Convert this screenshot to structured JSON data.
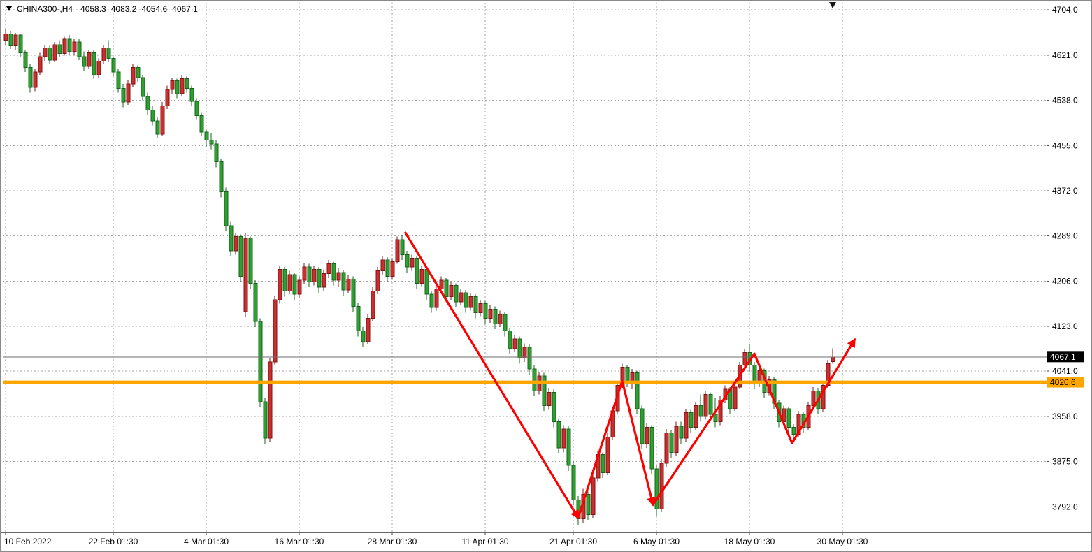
{
  "info_bar": {
    "symbol_period": "CHINA300-,H4",
    "open": "4058.3",
    "high": "4083.2",
    "low": "4054.6",
    "close": "4067.1"
  },
  "colors": {
    "bull": "#cc2e2e",
    "bull_border": "#801414",
    "bear": "#2fa02f",
    "bear_border": "#14641c",
    "grid": "#a6a6a6",
    "orange_line": "#ffa500",
    "current_line": "#6e6e6e",
    "arrow": "#fe0000",
    "axis_text": "#000000",
    "current_label_bg": "#000000",
    "current_label_text": "#ffffff",
    "hline_label_bg": "#ffa500",
    "hline_label_text": "#000000"
  },
  "chart_data": {
    "type": "candlestick",
    "symbol": "CHINA300-",
    "timeframe": "H4",
    "title": "CHINA300-,H4",
    "grid": true,
    "ylim": [
      3745,
      4715
    ],
    "current_price": "4067.1",
    "current_bar": {
      "open": 4058.3,
      "high": 4083.2,
      "low": 4054.6,
      "close": 4067.1
    },
    "horizontal_line": "4020.6",
    "y_axis": {
      "ticks": [
        "4704.0",
        "4621.0",
        "4538.0",
        "4455.0",
        "4372.0",
        "4289.0",
        "4206.0",
        "4123.0",
        "4041.0",
        "3958.0",
        "3875.0",
        "3792.0"
      ]
    },
    "x_axis": {
      "ticks": [
        {
          "index": 0,
          "label": "10 Feb 2022"
        },
        {
          "index": 22,
          "label": "22 Feb 01:30"
        },
        {
          "index": 41,
          "label": "4 Mar 01:30"
        },
        {
          "index": 60,
          "label": "16 Mar 01:30"
        },
        {
          "index": 79,
          "label": "28 Mar 01:30"
        },
        {
          "index": 98,
          "label": "11 Apr 01:30"
        },
        {
          "index": 116,
          "label": "21 Apr 01:30"
        },
        {
          "index": 133,
          "label": "6 May 01:30"
        },
        {
          "index": 152,
          "label": "18 May 01:30"
        },
        {
          "index": 171,
          "label": "30 May 01:30"
        }
      ]
    },
    "trend_arrows": [
      {
        "from": [
          81.7,
          4295
        ],
        "to": [
          117,
          3772
        ],
        "head": true
      },
      {
        "from": [
          117,
          3772
        ],
        "to": [
          126,
          4023
        ],
        "head": false
      },
      {
        "from": [
          126,
          4023
        ],
        "to": [
          132.3,
          3796
        ],
        "head": true
      },
      {
        "from": [
          132.3,
          3796
        ],
        "to": [
          153,
          4073
        ],
        "head": false
      },
      {
        "from": [
          153,
          4073
        ],
        "to": [
          160.7,
          3909
        ],
        "head": false
      },
      {
        "from": [
          160.7,
          3909
        ],
        "to": [
          173.5,
          4099
        ],
        "head": true
      }
    ],
    "candles": [
      [
        4648,
        4668,
        4640,
        4660
      ],
      [
        4660,
        4665,
        4632,
        4638
      ],
      [
        4638,
        4662,
        4630,
        4658
      ],
      [
        4658,
        4660,
        4618,
        4625
      ],
      [
        4625,
        4630,
        4590,
        4598
      ],
      [
        4598,
        4605,
        4552,
        4562
      ],
      [
        4562,
        4595,
        4555,
        4590
      ],
      [
        4590,
        4625,
        4585,
        4618
      ],
      [
        4618,
        4640,
        4610,
        4634
      ],
      [
        4634,
        4638,
        4605,
        4612
      ],
      [
        4612,
        4645,
        4608,
        4640
      ],
      [
        4640,
        4648,
        4618,
        4624
      ],
      [
        4624,
        4655,
        4620,
        4650
      ],
      [
        4650,
        4658,
        4622,
        4628
      ],
      [
        4628,
        4650,
        4620,
        4645
      ],
      [
        4645,
        4650,
        4612,
        4618
      ],
      [
        4618,
        4628,
        4592,
        4600
      ],
      [
        4600,
        4630,
        4595,
        4625
      ],
      [
        4625,
        4630,
        4578,
        4585
      ],
      [
        4585,
        4615,
        4580,
        4610
      ],
      [
        4610,
        4640,
        4605,
        4634
      ],
      [
        4634,
        4648,
        4608,
        4615
      ],
      [
        4615,
        4618,
        4582,
        4590
      ],
      [
        4590,
        4595,
        4552,
        4560
      ],
      [
        4560,
        4568,
        4525,
        4535
      ],
      [
        4535,
        4575,
        4530,
        4568
      ],
      [
        4568,
        4605,
        4562,
        4598
      ],
      [
        4598,
        4602,
        4572,
        4580
      ],
      [
        4580,
        4585,
        4538,
        4545
      ],
      [
        4545,
        4552,
        4512,
        4520
      ],
      [
        4520,
        4528,
        4492,
        4500
      ],
      [
        4500,
        4508,
        4468,
        4476
      ],
      [
        4476,
        4535,
        4472,
        4528
      ],
      [
        4528,
        4565,
        4522,
        4558
      ],
      [
        4558,
        4580,
        4550,
        4574
      ],
      [
        4574,
        4578,
        4542,
        4550
      ],
      [
        4550,
        4585,
        4545,
        4578
      ],
      [
        4578,
        4582,
        4552,
        4560
      ],
      [
        4560,
        4565,
        4528,
        4536
      ],
      [
        4536,
        4542,
        4502,
        4510
      ],
      [
        4510,
        4515,
        4472,
        4480
      ],
      [
        4480,
        4485,
        4452,
        4465
      ],
      [
        4465,
        4478,
        4448,
        4458
      ],
      [
        4458,
        4464,
        4415,
        4425
      ],
      [
        4425,
        4430,
        4360,
        4370
      ],
      [
        4370,
        4378,
        4298,
        4308
      ],
      [
        4308,
        4315,
        4252,
        4262
      ],
      [
        4262,
        4295,
        4255,
        4288
      ],
      [
        4288,
        4292,
        4205,
        4215
      ],
      [
        4150,
        4295,
        4140,
        4285
      ],
      [
        4285,
        4288,
        4192,
        4202
      ],
      [
        4202,
        4208,
        4122,
        4132
      ],
      [
        4132,
        4138,
        3975,
        3985
      ],
      [
        3985,
        3992,
        3908,
        3918
      ],
      [
        3918,
        4065,
        3912,
        4058
      ],
      [
        4058,
        4180,
        4052,
        4172
      ],
      [
        4172,
        4235,
        4165,
        4228
      ],
      [
        4228,
        4232,
        4178,
        4188
      ],
      [
        4188,
        4225,
        4182,
        4218
      ],
      [
        4218,
        4222,
        4172,
        4182
      ],
      [
        4182,
        4215,
        4175,
        4208
      ],
      [
        4208,
        4240,
        4200,
        4232
      ],
      [
        4232,
        4238,
        4195,
        4205
      ],
      [
        4205,
        4235,
        4198,
        4228
      ],
      [
        4228,
        4232,
        4185,
        4195
      ],
      [
        4195,
        4228,
        4188,
        4220
      ],
      [
        4220,
        4245,
        4212,
        4238
      ],
      [
        4238,
        4242,
        4198,
        4208
      ],
      [
        4208,
        4230,
        4195,
        4222
      ],
      [
        4222,
        4226,
        4180,
        4190
      ],
      [
        4190,
        4218,
        4184,
        4210
      ],
      [
        4210,
        4215,
        4150,
        4160
      ],
      [
        4160,
        4166,
        4105,
        4115
      ],
      [
        4115,
        4122,
        4085,
        4095
      ],
      [
        4095,
        4145,
        4090,
        4138
      ],
      [
        4138,
        4195,
        4132,
        4188
      ],
      [
        4188,
        4232,
        4182,
        4225
      ],
      [
        4225,
        4252,
        4218,
        4245
      ],
      [
        4245,
        4250,
        4205,
        4215
      ],
      [
        4215,
        4248,
        4210,
        4242
      ],
      [
        4242,
        4288,
        4238,
        4282
      ],
      [
        4282,
        4290,
        4245,
        4255
      ],
      [
        4255,
        4262,
        4222,
        4232
      ],
      [
        4232,
        4255,
        4225,
        4248
      ],
      [
        4248,
        4252,
        4192,
        4202
      ],
      [
        4202,
        4235,
        4196,
        4228
      ],
      [
        4228,
        4232,
        4172,
        4182
      ],
      [
        4182,
        4188,
        4148,
        4158
      ],
      [
        4158,
        4198,
        4152,
        4192
      ],
      [
        4192,
        4215,
        4186,
        4208
      ],
      [
        4208,
        4212,
        4168,
        4178
      ],
      [
        4178,
        4205,
        4172,
        4198
      ],
      [
        4198,
        4202,
        4158,
        4168
      ],
      [
        4168,
        4192,
        4162,
        4185
      ],
      [
        4185,
        4190,
        4148,
        4158
      ],
      [
        4158,
        4185,
        4152,
        4178
      ],
      [
        4178,
        4182,
        4138,
        4148
      ],
      [
        4148,
        4172,
        4142,
        4165
      ],
      [
        4165,
        4170,
        4128,
        4138
      ],
      [
        4138,
        4162,
        4130,
        4155
      ],
      [
        4155,
        4160,
        4118,
        4128
      ],
      [
        4128,
        4152,
        4122,
        4145
      ],
      [
        4145,
        4150,
        4105,
        4115
      ],
      [
        4115,
        4120,
        4072,
        4082
      ],
      [
        4082,
        4108,
        4076,
        4100
      ],
      [
        4100,
        4105,
        4055,
        4065
      ],
      [
        4065,
        4092,
        4058,
        4085
      ],
      [
        4085,
        4090,
        4035,
        4045
      ],
      [
        4045,
        4052,
        3995,
        4005
      ],
      [
        4005,
        4040,
        3998,
        4032
      ],
      [
        4032,
        4038,
        3968,
        3978
      ],
      [
        3978,
        4010,
        3970,
        4002
      ],
      [
        4002,
        4008,
        3938,
        3948
      ],
      [
        3948,
        3955,
        3890,
        3900
      ],
      [
        3900,
        3942,
        3892,
        3935
      ],
      [
        3935,
        3940,
        3858,
        3868
      ],
      [
        3868,
        3875,
        3795,
        3805
      ],
      [
        3805,
        3812,
        3758,
        3770
      ],
      [
        3770,
        3825,
        3762,
        3815
      ],
      [
        3815,
        3820,
        3768,
        3778
      ],
      [
        3778,
        3852,
        3772,
        3845
      ],
      [
        3845,
        3895,
        3838,
        3888
      ],
      [
        3888,
        3892,
        3845,
        3855
      ],
      [
        3855,
        3928,
        3850,
        3920
      ],
      [
        3920,
        3975,
        3915,
        3968
      ],
      [
        3968,
        4022,
        3962,
        4015
      ],
      [
        4015,
        4055,
        4010,
        4048
      ],
      [
        4048,
        4052,
        4012,
        4022
      ],
      [
        4022,
        4045,
        4008,
        4038
      ],
      [
        4038,
        4042,
        3962,
        3972
      ],
      [
        3972,
        3978,
        3898,
        3908
      ],
      [
        3908,
        3945,
        3900,
        3938
      ],
      [
        3938,
        3942,
        3852,
        3862
      ],
      [
        3862,
        3868,
        3775,
        3788
      ],
      [
        3788,
        3880,
        3782,
        3872
      ],
      [
        3872,
        3935,
        3865,
        3928
      ],
      [
        3928,
        3932,
        3882,
        3892
      ],
      [
        3892,
        3948,
        3885,
        3940
      ],
      [
        3940,
        3948,
        3908,
        3918
      ],
      [
        3918,
        3972,
        3912,
        3965
      ],
      [
        3965,
        3970,
        3928,
        3938
      ],
      [
        3938,
        3985,
        3932,
        3978
      ],
      [
        3978,
        3998,
        3948,
        3958
      ],
      [
        3958,
        4005,
        3952,
        3998
      ],
      [
        3998,
        4002,
        3952,
        3962
      ],
      [
        3962,
        3992,
        3938,
        3948
      ],
      [
        3948,
        3995,
        3942,
        3988
      ],
      [
        3988,
        4015,
        3982,
        4008
      ],
      [
        4008,
        4012,
        3962,
        3972
      ],
      [
        3972,
        4018,
        3968,
        4012
      ],
      [
        4012,
        4058,
        4008,
        4052
      ],
      [
        4052,
        4082,
        4045,
        4075
      ],
      [
        4075,
        4090,
        4040,
        4052
      ],
      [
        4052,
        4058,
        4008,
        4018
      ],
      [
        4018,
        4048,
        4012,
        4042
      ],
      [
        4042,
        4046,
        3992,
        4002
      ],
      [
        4002,
        4032,
        3996,
        4025
      ],
      [
        4025,
        4030,
        3972,
        3982
      ],
      [
        3982,
        3988,
        3938,
        3948
      ],
      [
        3948,
        3978,
        3942,
        3972
      ],
      [
        3972,
        3976,
        3928,
        3938
      ],
      [
        3938,
        3944,
        3912,
        3925
      ],
      [
        3925,
        3968,
        3920,
        3962
      ],
      [
        3962,
        3966,
        3928,
        3938
      ],
      [
        3938,
        3985,
        3932,
        3978
      ],
      [
        3978,
        4012,
        3972,
        4005
      ],
      [
        4005,
        4010,
        3962,
        3972
      ],
      [
        3972,
        4020,
        3966,
        4015
      ],
      [
        4015,
        4062,
        4010,
        4055
      ],
      [
        4058.3,
        4083.2,
        4054.6,
        4067.1
      ]
    ]
  }
}
